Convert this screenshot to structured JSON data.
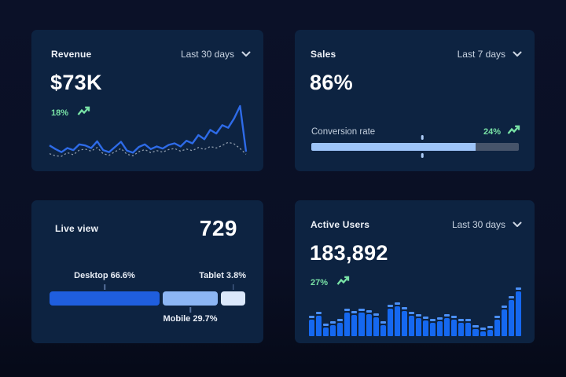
{
  "theme": {
    "page_bg": "#0a0f24",
    "card_bg": "#0d2341",
    "text_primary": "#ffffff",
    "text_secondary": "#c9d4e2",
    "text_muted": "#c2cedd",
    "green": "#79e2a6",
    "line_blue": "#2e6be8",
    "line_dotted": "#8e9bac",
    "bar_blue": "#1568f0",
    "bar_cap": "#4b90f7",
    "progress_fill": "#9dc4f8",
    "progress_rest": "#46546a",
    "seg_colors": [
      "#1f5ede",
      "#8cb6f4",
      "#dbe8fb"
    ]
  },
  "icons": {
    "dropdown": "chevron-down",
    "trend": "trending-up"
  },
  "cards": {
    "revenue": {
      "title": "Revenue",
      "period": "Last 30 days",
      "value": "$73K",
      "delta": "18%"
    },
    "sales": {
      "title": "Sales",
      "period": "Last 7 days",
      "value": "86%",
      "metric_label": "Conversion rate",
      "delta": "24%"
    },
    "live_view": {
      "title": "Live view",
      "value": "729",
      "segments": [
        {
          "name": "Desktop",
          "label": "Desktop 66.6%",
          "pct": 66.6,
          "visual_pct": 56,
          "label_position": "top"
        },
        {
          "name": "Mobile",
          "label": "Mobile 29.7%",
          "pct": 29.7,
          "visual_pct": 28,
          "label_position": "bottom"
        },
        {
          "name": "Tablet",
          "label": "Tablet 3.8%",
          "pct": 3.8,
          "visual_pct": 12.5,
          "label_position": "top"
        }
      ]
    },
    "active_users": {
      "title": "Active Users",
      "period": "Last 30 days",
      "value": "183,892",
      "delta": "27%"
    }
  },
  "chart_data": [
    {
      "type": "line",
      "title": "Revenue",
      "period": "Last 30 days",
      "headline_value": "$73K",
      "change": "18%",
      "y_normalized_0_100": true,
      "series": [
        {
          "name": "previous",
          "style": "dotted",
          "values": [
            8,
            4,
            3,
            10,
            6,
            15,
            17,
            13,
            20,
            8,
            5,
            12,
            18,
            7,
            4,
            12,
            16,
            10,
            14,
            11,
            16,
            18,
            13,
            17,
            14,
            20,
            16,
            22,
            19,
            24,
            30,
            27,
            18,
            7
          ]
        },
        {
          "name": "current",
          "style": "solid",
          "values": [
            24,
            17,
            11,
            19,
            15,
            26,
            24,
            19,
            32,
            15,
            11,
            21,
            31,
            14,
            10,
            21,
            26,
            17,
            22,
            18,
            25,
            28,
            22,
            33,
            28,
            44,
            36,
            54,
            47,
            63,
            58,
            76,
            100,
            12
          ]
        }
      ]
    },
    {
      "type": "bar",
      "subtype": "progress",
      "title": "Sales",
      "period": "Last 7 days",
      "headline_value": "86%",
      "metric": "Conversion rate",
      "change": "24%",
      "fill_pct": 79,
      "marker_pct": 53.5
    },
    {
      "type": "bar",
      "subtype": "stacked-horizontal",
      "title": "Live view",
      "headline_value": 729,
      "categories": [
        "Desktop",
        "Mobile",
        "Tablet"
      ],
      "values": [
        66.6,
        29.7,
        3.8
      ]
    },
    {
      "type": "bar",
      "title": "Active Users",
      "period": "Last 30 days",
      "headline_value": "183,892",
      "change": "27%",
      "y_normalized_0_100": true,
      "values": [
        42,
        50,
        26,
        30,
        36,
        57,
        52,
        56,
        54,
        46,
        30,
        65,
        70,
        60,
        50,
        45,
        40,
        35,
        38,
        45,
        42,
        36,
        35,
        22,
        18,
        21,
        42,
        63,
        82,
        100
      ]
    }
  ]
}
